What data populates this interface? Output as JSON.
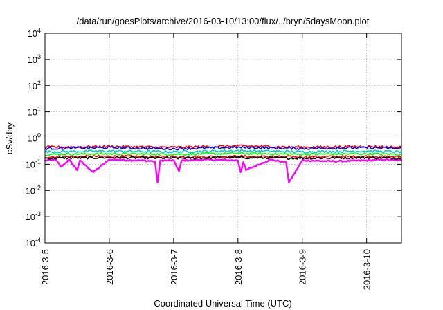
{
  "chart_data": {
    "type": "line",
    "title": "/data/run/goesPlots/archive/2016-03-10/13:00/flux/../bryn/5daysMoon.plot",
    "xlabel": "Coordinated Universal Time (UTC)",
    "ylabel": "cSv/day",
    "yscale": "log",
    "ylim": [
      0.0001,
      10000
    ],
    "y_ticks": [
      {
        "base": "10",
        "exp": "-4",
        "value": 0.0001
      },
      {
        "base": "10",
        "exp": "-3",
        "value": 0.001
      },
      {
        "base": "10",
        "exp": "-2",
        "value": 0.01
      },
      {
        "base": "10",
        "exp": "-1",
        "value": 0.1
      },
      {
        "base": "10",
        "exp": "0",
        "value": 1
      },
      {
        "base": "10",
        "exp": "1",
        "value": 10
      },
      {
        "base": "10",
        "exp": "2",
        "value": 100
      },
      {
        "base": "10",
        "exp": "3",
        "value": 1000
      },
      {
        "base": "10",
        "exp": "4",
        "value": 10000
      }
    ],
    "xlim": [
      "2016-03-05 00:00",
      "2016-03-10 13:00"
    ],
    "x_ticks": [
      {
        "label": "2016-3-5",
        "date": "2016-03-05"
      },
      {
        "label": "2016-3-6",
        "date": "2016-03-06"
      },
      {
        "label": "2016-3-7",
        "date": "2016-03-07"
      },
      {
        "label": "2016-3-8",
        "date": "2016-03-08"
      },
      {
        "label": "2016-3-9",
        "date": "2016-03-09"
      },
      {
        "label": "2016-3-10",
        "date": "2016-03-10"
      }
    ],
    "grid": true,
    "series": [
      {
        "color": "#ff00ff",
        "x": [
          "2016-03-05 00:00",
          "2016-03-05 04:00",
          "2016-03-05 06:00",
          "2016-03-05 09:00",
          "2016-03-05 12:00",
          "2016-03-05 13:00",
          "2016-03-05 18:00",
          "2016-03-06 00:00",
          "2016-03-06 12:00",
          "2016-03-06 17:00",
          "2016-03-06 18:00",
          "2016-03-06 19:00",
          "2016-03-07 00:00",
          "2016-03-07 02:00",
          "2016-03-07 03:00",
          "2016-03-07 12:00",
          "2016-03-08 00:00",
          "2016-03-08 01:00",
          "2016-03-08 02:00",
          "2016-03-08 03:00",
          "2016-03-08 12:00",
          "2016-03-08 18:00",
          "2016-03-08 19:00",
          "2016-03-09 00:00",
          "2016-03-09 12:00",
          "2016-03-10 00:00",
          "2016-03-10 06:00",
          "2016-03-10 13:00"
        ],
        "values": [
          0.14,
          0.15,
          0.08,
          0.15,
          0.06,
          0.14,
          0.05,
          0.15,
          0.14,
          0.13,
          0.02,
          0.14,
          0.14,
          0.055,
          0.14,
          0.15,
          0.14,
          0.05,
          0.12,
          0.06,
          0.15,
          0.12,
          0.02,
          0.14,
          0.13,
          0.14,
          0.15,
          0.14
        ]
      },
      {
        "color": "#ff0000",
        "x": [
          "2016-03-05 00:00",
          "2016-03-06 00:00",
          "2016-03-07 00:00",
          "2016-03-08 00:00",
          "2016-03-09 00:00",
          "2016-03-10 00:00",
          "2016-03-10 13:00"
        ],
        "values": [
          0.19,
          0.2,
          0.19,
          0.2,
          0.19,
          0.2,
          0.19
        ]
      },
      {
        "color": "#000000",
        "x": [
          "2016-03-05 00:00",
          "2016-03-06 00:00",
          "2016-03-07 00:00",
          "2016-03-08 00:00",
          "2016-03-09 00:00",
          "2016-03-10 00:00",
          "2016-03-10 13:00"
        ],
        "values": [
          0.17,
          0.18,
          0.17,
          0.18,
          0.17,
          0.18,
          0.17
        ]
      },
      {
        "color": "#00ff00",
        "x": [
          "2016-03-05 00:00",
          "2016-03-06 00:00",
          "2016-03-07 00:00",
          "2016-03-08 00:00",
          "2016-03-09 00:00",
          "2016-03-10 00:00",
          "2016-03-10 13:00"
        ],
        "values": [
          0.24,
          0.25,
          0.24,
          0.26,
          0.24,
          0.25,
          0.24
        ]
      },
      {
        "color": "#00cccc",
        "x": [
          "2016-03-05 00:00",
          "2016-03-06 00:00",
          "2016-03-07 00:00",
          "2016-03-08 00:00",
          "2016-03-09 00:00",
          "2016-03-10 00:00",
          "2016-03-10 13:00"
        ],
        "values": [
          0.3,
          0.32,
          0.3,
          0.33,
          0.3,
          0.32,
          0.3
        ]
      },
      {
        "color": "#ff0000",
        "x": [
          "2016-03-05 00:00",
          "2016-03-06 00:00",
          "2016-03-07 00:00",
          "2016-03-08 00:00",
          "2016-03-09 00:00",
          "2016-03-10 00:00",
          "2016-03-10 13:00"
        ],
        "values": [
          0.45,
          0.48,
          0.44,
          0.5,
          0.45,
          0.48,
          0.45
        ]
      },
      {
        "color": "#0000ff",
        "x": [
          "2016-03-05 00:00",
          "2016-03-06 00:00",
          "2016-03-07 00:00",
          "2016-03-08 00:00",
          "2016-03-09 00:00",
          "2016-03-10 00:00",
          "2016-03-10 13:00"
        ],
        "values": [
          0.4,
          0.43,
          0.39,
          0.44,
          0.4,
          0.43,
          0.4
        ]
      }
    ]
  }
}
